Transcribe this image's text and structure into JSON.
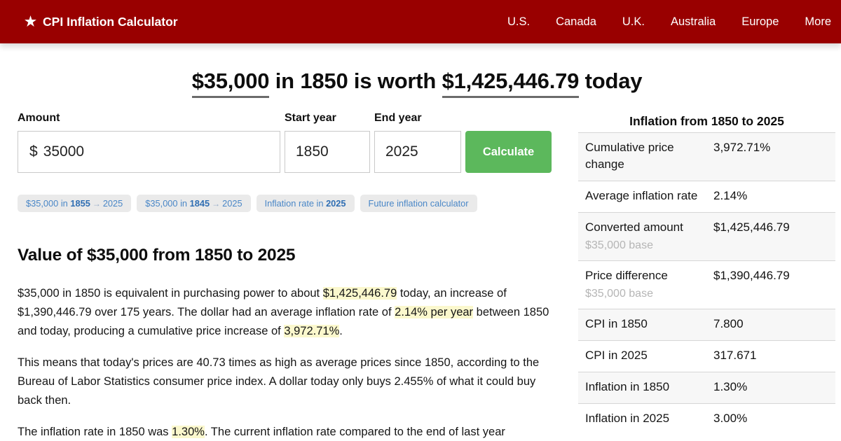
{
  "colors": {
    "brand-red": "#990000",
    "accent-green": "#5cb85c",
    "link-blue": "#4a87c7",
    "highlight": "#fbf8cd"
  },
  "navbar": {
    "star_icon": "★",
    "brand": "CPI Inflation Calculator",
    "items": [
      "U.S.",
      "Canada",
      "U.K.",
      "Australia",
      "Europe",
      "More"
    ]
  },
  "hero": {
    "amount": "$35,000",
    "mid": " in 1850 is worth ",
    "worth": "$1,425,446.79",
    "tail": " today"
  },
  "form": {
    "amount_label": "Amount",
    "currency_prefix": "$",
    "amount_value": "35000",
    "start_label": "Start year",
    "start_value": "1850",
    "end_label": "End year",
    "end_value": "2025",
    "calculate_label": "Calculate"
  },
  "chips": [
    {
      "pre": "$35,000 in ",
      "bold": "1855",
      "arrow": "→",
      "post": "2025"
    },
    {
      "pre": "$35,000 in ",
      "bold": "1845",
      "arrow": "→",
      "post": "2025"
    },
    {
      "pre": "Inflation rate in ",
      "bold": "2025"
    },
    {
      "text": "Future inflation calculator"
    }
  ],
  "article": {
    "heading": "Value of $35,000 from 1850 to 2025",
    "p1": {
      "t1": "$35,000 in 1850 is equivalent in purchasing power to about ",
      "h1": "$1,425,446.79",
      "t2": " today, an increase of $1,390,446.79 over 175 years. The dollar had an average inflation rate of ",
      "h2": "2.14% per year",
      "t3": " between 1850 and today, producing a cumulative price increase of ",
      "h3": "3,972.71%",
      "t4": "."
    },
    "p2": "This means that today's prices are 40.73 times as high as average prices since 1850, according to the Bureau of Labor Statistics consumer price index. A dollar today only buys 2.455% of what it could buy back then.",
    "p3": {
      "t1": "The inflation rate in 1850 was ",
      "h1": "1.30%",
      "t2": ". The current inflation rate compared to the end of last year"
    }
  },
  "summary_table": {
    "title": "Inflation from 1850 to 2025",
    "rows": [
      {
        "label": "Cumulative price change",
        "sub": "",
        "value": "3,972.71%"
      },
      {
        "label": "Average inflation rate",
        "sub": "",
        "value": "2.14%"
      },
      {
        "label": "Converted amount",
        "sub": "$35,000 base",
        "value": "$1,425,446.79"
      },
      {
        "label": "Price difference",
        "sub": "$35,000 base",
        "value": "$1,390,446.79"
      },
      {
        "label": "CPI in 1850",
        "sub": "",
        "value": "7.800"
      },
      {
        "label": "CPI in 2025",
        "sub": "",
        "value": "317.671"
      },
      {
        "label": "Inflation in 1850",
        "sub": "",
        "value": "1.30%"
      },
      {
        "label": "Inflation in 2025",
        "sub": "",
        "value": "3.00%"
      }
    ]
  }
}
